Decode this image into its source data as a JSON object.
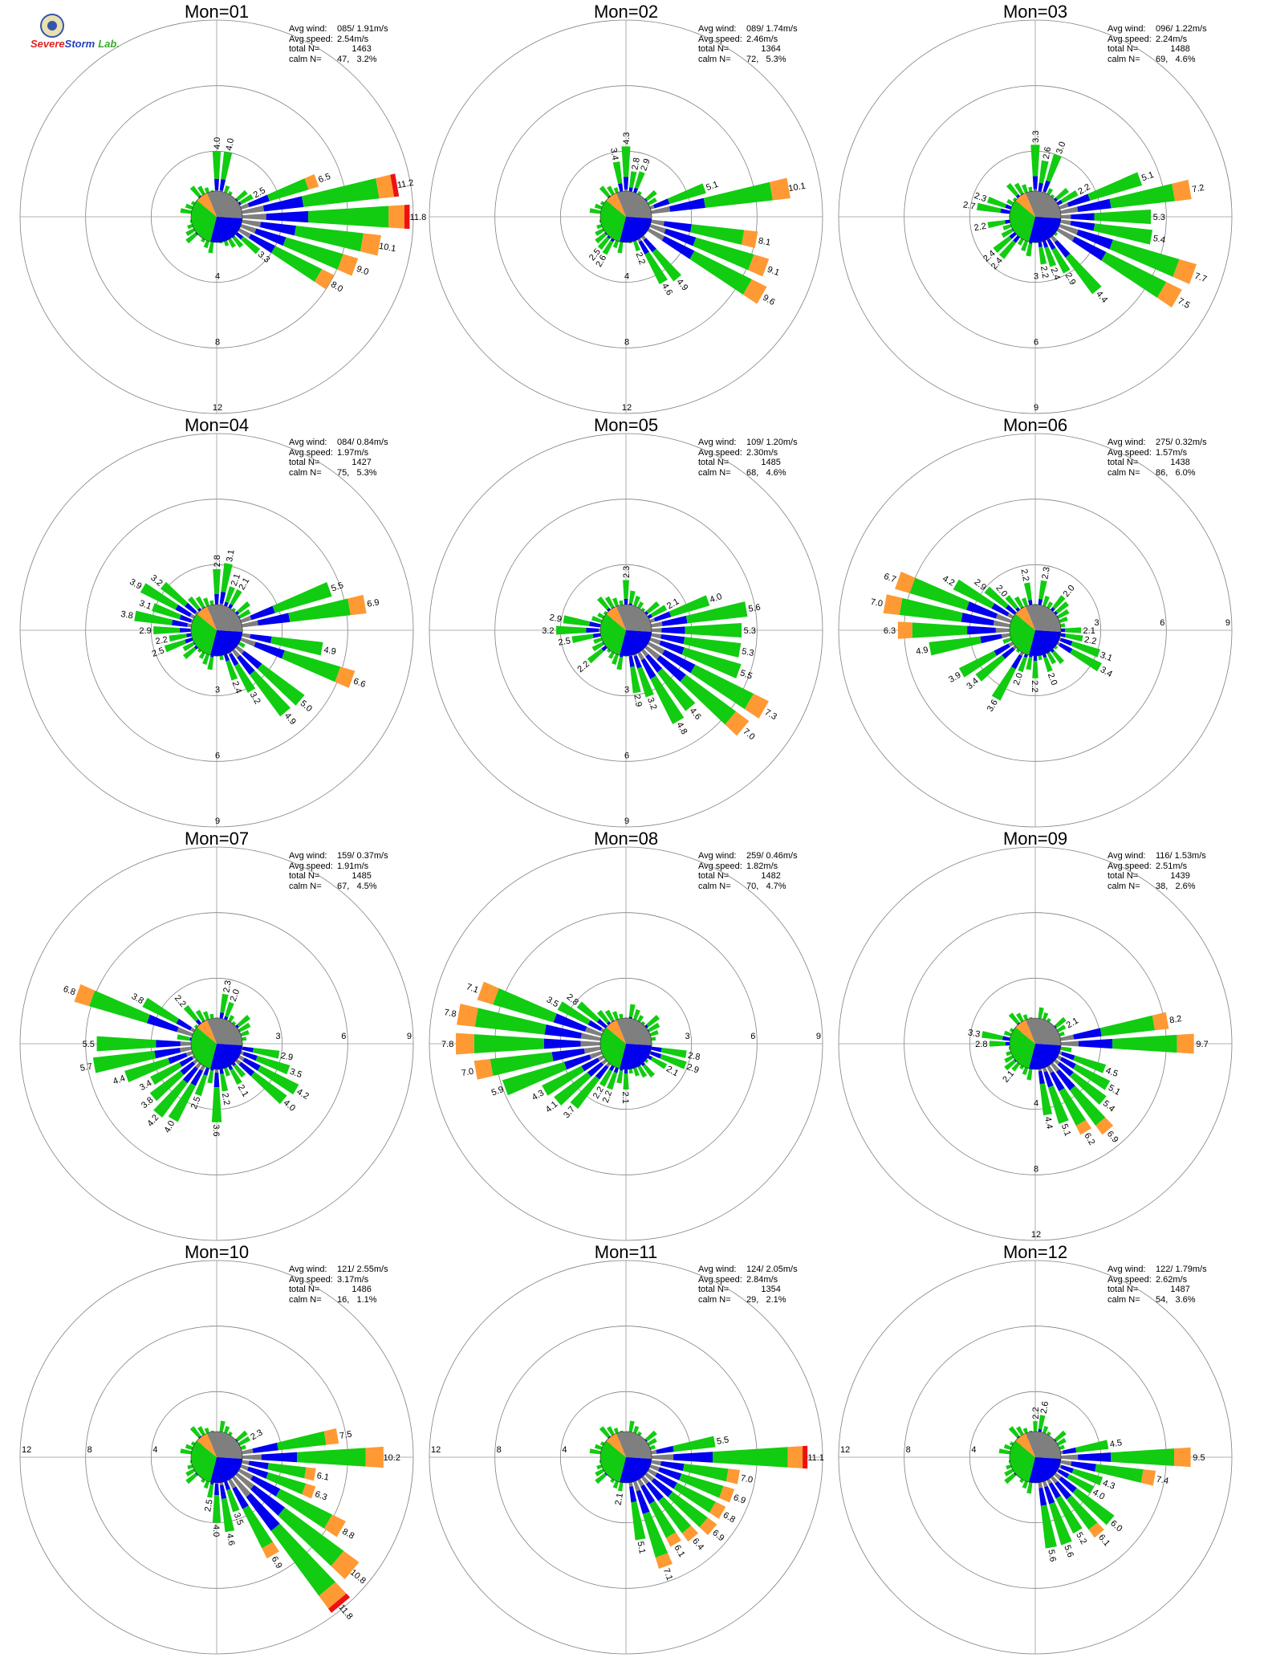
{
  "logo": {
    "name": "severe-storm-lab-logo",
    "text_severe": "Severe",
    "text_storm": "Storm",
    "text_lab": "Lab."
  },
  "labels": {
    "avg_wind": "Avg wind:",
    "avg_speed": "Avg speed:",
    "total": "total N=",
    "calm": "calm N="
  },
  "colors": {
    "calm_white": "#ffffff",
    "speed_1_gray": "#7f7f7f",
    "speed_2_blue": "#0000ee",
    "speed_3_green": "#11cc11",
    "speed_4_orange": "#ff9933",
    "speed_5_red": "#ee1111"
  },
  "chart_data": [
    {
      "type": "wind-rose",
      "title": "Mon=01",
      "avg_wind": "085/ 1.91m/s",
      "avg_speed": "2.54m/s",
      "total_n": "1463",
      "calm_n": "47,   3.2%",
      "rmax": 12,
      "rings": [
        4,
        8,
        12
      ],
      "ring_label_side": "bottom",
      "petals": [
        {
          "dir": 90,
          "value": 11.8
        },
        {
          "dir": 80,
          "value": 11.2
        },
        {
          "dir": 100,
          "value": 10.1
        },
        {
          "dir": 110,
          "value": 9.0
        },
        {
          "dir": 120,
          "value": 8.0
        },
        {
          "dir": 70,
          "value": 6.5
        },
        {
          "dir": 130,
          "value": 3.3
        },
        {
          "dir": 60,
          "value": 2.5
        },
        {
          "dir": 10,
          "value": 4.0
        },
        {
          "dir": 0,
          "value": 4.0
        }
      ]
    },
    {
      "type": "wind-rose",
      "title": "Mon=02",
      "avg_wind": "089/ 1.74m/s",
      "avg_speed": "2.46m/s",
      "total_n": "1364",
      "calm_n": "72,   5.3%",
      "rmax": 12,
      "rings": [
        4,
        8,
        12
      ],
      "ring_label_side": "bottom",
      "petals": [
        {
          "dir": 80,
          "value": 10.1
        },
        {
          "dir": 120,
          "value": 9.6
        },
        {
          "dir": 110,
          "value": 9.1
        },
        {
          "dir": 100,
          "value": 8.1
        },
        {
          "dir": 70,
          "value": 5.1
        },
        {
          "dir": 140,
          "value": 4.9
        },
        {
          "dir": 150,
          "value": 4.6
        },
        {
          "dir": 0,
          "value": 4.3
        },
        {
          "dir": 350,
          "value": 3.4
        },
        {
          "dir": 10,
          "value": 2.8
        },
        {
          "dir": 20,
          "value": 2.9
        },
        {
          "dir": 160,
          "value": 2.2
        },
        {
          "dir": 210,
          "value": 2.6
        },
        {
          "dir": 220,
          "value": 2.5
        }
      ]
    },
    {
      "type": "wind-rose",
      "title": "Mon=03",
      "avg_wind": "096/ 1.22m/s",
      "avg_speed": "2.24m/s",
      "total_n": "1488",
      "calm_n": "69,   4.6%",
      "rmax": 9,
      "rings": [
        3,
        6,
        9
      ],
      "ring_label_side": "bottom",
      "petals": [
        {
          "dir": 120,
          "value": 7.5
        },
        {
          "dir": 110,
          "value": 7.7
        },
        {
          "dir": 80,
          "value": 7.2
        },
        {
          "dir": 70,
          "value": 5.1
        },
        {
          "dir": 100,
          "value": 5.4
        },
        {
          "dir": 90,
          "value": 5.3
        },
        {
          "dir": 140,
          "value": 4.4
        },
        {
          "dir": 0,
          "value": 3.3
        },
        {
          "dir": 10,
          "value": 2.6
        },
        {
          "dir": 20,
          "value": 3.0
        },
        {
          "dir": 60,
          "value": 2.2
        },
        {
          "dir": 150,
          "value": 2.9
        },
        {
          "dir": 160,
          "value": 2.4
        },
        {
          "dir": 170,
          "value": 2.2
        },
        {
          "dir": 280,
          "value": 2.7
        },
        {
          "dir": 290,
          "value": 2.3
        },
        {
          "dir": 260,
          "value": 2.2
        },
        {
          "dir": 230,
          "value": 2.4
        },
        {
          "dir": 220,
          "value": 2.4
        }
      ]
    },
    {
      "type": "wind-rose",
      "title": "Mon=04",
      "avg_wind": "084/ 0.84m/s",
      "avg_speed": "1.97m/s",
      "total_n": "1427",
      "calm_n": "75,   5.3%",
      "rmax": 9,
      "rings": [
        3,
        6,
        9
      ],
      "ring_label_side": "bottom",
      "petals": [
        {
          "dir": 80,
          "value": 6.9
        },
        {
          "dir": 110,
          "value": 6.6
        },
        {
          "dir": 70,
          "value": 5.5
        },
        {
          "dir": 130,
          "value": 5.0
        },
        {
          "dir": 140,
          "value": 4.9
        },
        {
          "dir": 100,
          "value": 4.9
        },
        {
          "dir": 300,
          "value": 3.9
        },
        {
          "dir": 280,
          "value": 3.8
        },
        {
          "dir": 310,
          "value": 3.2
        },
        {
          "dir": 150,
          "value": 3.2
        },
        {
          "dir": 290,
          "value": 3.1
        },
        {
          "dir": 10,
          "value": 3.1
        },
        {
          "dir": 0,
          "value": 2.8
        },
        {
          "dir": 270,
          "value": 2.9
        },
        {
          "dir": 160,
          "value": 2.4
        },
        {
          "dir": 250,
          "value": 2.5
        },
        {
          "dir": 260,
          "value": 2.2
        },
        {
          "dir": 20,
          "value": 2.1
        },
        {
          "dir": 30,
          "value": 2.1
        }
      ]
    },
    {
      "type": "wind-rose",
      "title": "Mon=05",
      "avg_wind": "109/ 1.20m/s",
      "avg_speed": "2.30m/s",
      "total_n": "1485",
      "calm_n": "68,   4.6%",
      "rmax": 9,
      "rings": [
        3,
        6,
        9
      ],
      "ring_label_side": "bottom",
      "petals": [
        {
          "dir": 120,
          "value": 7.3
        },
        {
          "dir": 130,
          "value": 7.0
        },
        {
          "dir": 80,
          "value": 5.6
        },
        {
          "dir": 110,
          "value": 5.5
        },
        {
          "dir": 90,
          "value": 5.3
        },
        {
          "dir": 100,
          "value": 5.3
        },
        {
          "dir": 150,
          "value": 4.8
        },
        {
          "dir": 140,
          "value": 4.6
        },
        {
          "dir": 70,
          "value": 4.0
        },
        {
          "dir": 160,
          "value": 3.2
        },
        {
          "dir": 270,
          "value": 3.2
        },
        {
          "dir": 280,
          "value": 2.9
        },
        {
          "dir": 170,
          "value": 2.9
        },
        {
          "dir": 0,
          "value": 2.3
        },
        {
          "dir": 230,
          "value": 2.2
        },
        {
          "dir": 260,
          "value": 2.5
        },
        {
          "dir": 60,
          "value": 2.1
        }
      ]
    },
    {
      "type": "wind-rose",
      "title": "Mon=06",
      "avg_wind": "275/ 0.32m/s",
      "avg_speed": "1.57m/s",
      "total_n": "1438",
      "calm_n": "86,   6.0%",
      "rmax": 9,
      "rings": [
        3,
        6,
        9
      ],
      "ring_label_side": "right",
      "petals": [
        {
          "dir": 280,
          "value": 7.0
        },
        {
          "dir": 290,
          "value": 6.7
        },
        {
          "dir": 270,
          "value": 6.3
        },
        {
          "dir": 260,
          "value": 4.9
        },
        {
          "dir": 300,
          "value": 4.2
        },
        {
          "dir": 240,
          "value": 3.9
        },
        {
          "dir": 210,
          "value": 3.6
        },
        {
          "dir": 230,
          "value": 3.4
        },
        {
          "dir": 120,
          "value": 3.4
        },
        {
          "dir": 110,
          "value": 3.1
        },
        {
          "dir": 310,
          "value": 2.9
        },
        {
          "dir": 10,
          "value": 2.3
        },
        {
          "dir": 350,
          "value": 2.2
        },
        {
          "dir": 40,
          "value": 2.0
        },
        {
          "dir": 320,
          "value": 2.0
        },
        {
          "dir": 180,
          "value": 2.2
        },
        {
          "dir": 200,
          "value": 2.0
        },
        {
          "dir": 160,
          "value": 2.0
        },
        {
          "dir": 100,
          "value": 2.2
        },
        {
          "dir": 90,
          "value": 2.1
        }
      ]
    },
    {
      "type": "wind-rose",
      "title": "Mon=07",
      "avg_wind": "159/ 0.37m/s",
      "avg_speed": "1.91m/s",
      "total_n": "1485",
      "calm_n": "67,   4.5%",
      "rmax": 9,
      "rings": [
        3,
        6,
        9
      ],
      "ring_label_side": "right",
      "petals": [
        {
          "dir": 290,
          "value": 6.8
        },
        {
          "dir": 260,
          "value": 5.7
        },
        {
          "dir": 270,
          "value": 5.5
        },
        {
          "dir": 120,
          "value": 4.2
        },
        {
          "dir": 130,
          "value": 4.0
        },
        {
          "dir": 220,
          "value": 4.2
        },
        {
          "dir": 210,
          "value": 4.0
        },
        {
          "dir": 250,
          "value": 4.4
        },
        {
          "dir": 300,
          "value": 3.8
        },
        {
          "dir": 180,
          "value": 3.6
        },
        {
          "dir": 110,
          "value": 3.5
        },
        {
          "dir": 240,
          "value": 3.4
        },
        {
          "dir": 230,
          "value": 3.8
        },
        {
          "dir": 100,
          "value": 2.9
        },
        {
          "dir": 200,
          "value": 2.5
        },
        {
          "dir": 320,
          "value": 2.2
        },
        {
          "dir": 170,
          "value": 2.2
        },
        {
          "dir": 10,
          "value": 2.3
        },
        {
          "dir": 20,
          "value": 2.0
        },
        {
          "dir": 150,
          "value": 2.1
        }
      ]
    },
    {
      "type": "wind-rose",
      "title": "Mon=08",
      "avg_wind": "259/ 0.46m/s",
      "avg_speed": "1.82m/s",
      "total_n": "1482",
      "calm_n": "70,   4.7%",
      "rmax": 9,
      "rings": [
        3,
        6,
        9
      ],
      "ring_label_side": "right",
      "petals": [
        {
          "dir": 270,
          "value": 7.8
        },
        {
          "dir": 280,
          "value": 7.8
        },
        {
          "dir": 290,
          "value": 7.1
        },
        {
          "dir": 260,
          "value": 7.0
        },
        {
          "dir": 250,
          "value": 5.9
        },
        {
          "dir": 240,
          "value": 4.3
        },
        {
          "dir": 230,
          "value": 4.1
        },
        {
          "dir": 300,
          "value": 3.5
        },
        {
          "dir": 310,
          "value": 2.8
        },
        {
          "dir": 220,
          "value": 3.7
        },
        {
          "dir": 210,
          "value": 2.2
        },
        {
          "dir": 200,
          "value": 2.2
        },
        {
          "dir": 180,
          "value": 2.1
        },
        {
          "dir": 100,
          "value": 2.8
        },
        {
          "dir": 110,
          "value": 2.9
        },
        {
          "dir": 120,
          "value": 2.1
        }
      ]
    },
    {
      "type": "wind-rose",
      "title": "Mon=09",
      "avg_wind": "116/ 1.53m/s",
      "avg_speed": "2.51m/s",
      "total_n": "1439",
      "calm_n": "38,   2.6%",
      "rmax": 12,
      "rings": [
        4,
        8,
        12
      ],
      "ring_label_side": "bottom",
      "petals": [
        {
          "dir": 90,
          "value": 9.7
        },
        {
          "dir": 80,
          "value": 8.2
        },
        {
          "dir": 150,
          "value": 6.2
        },
        {
          "dir": 140,
          "value": 6.9
        },
        {
          "dir": 130,
          "value": 5.4
        },
        {
          "dir": 120,
          "value": 5.1
        },
        {
          "dir": 110,
          "value": 4.5
        },
        {
          "dir": 160,
          "value": 5.1
        },
        {
          "dir": 170,
          "value": 4.4
        },
        {
          "dir": 280,
          "value": 3.3
        },
        {
          "dir": 270,
          "value": 2.8
        },
        {
          "dir": 60,
          "value": 2.1
        },
        {
          "dir": 220,
          "value": 2.1
        }
      ]
    },
    {
      "type": "wind-rose",
      "title": "Mon=10",
      "avg_wind": "121/ 2.55m/s",
      "avg_speed": "3.17m/s",
      "total_n": "1486",
      "calm_n": "16,   1.1%",
      "rmax": 12,
      "rings": [
        4,
        8,
        12
      ],
      "ring_label_side": "left",
      "petals": [
        {
          "dir": 140,
          "value": 11.8
        },
        {
          "dir": 130,
          "value": 10.8
        },
        {
          "dir": 90,
          "value": 10.2
        },
        {
          "dir": 120,
          "value": 8.8
        },
        {
          "dir": 80,
          "value": 7.5
        },
        {
          "dir": 150,
          "value": 6.9
        },
        {
          "dir": 110,
          "value": 6.3
        },
        {
          "dir": 100,
          "value": 6.1
        },
        {
          "dir": 170,
          "value": 4.6
        },
        {
          "dir": 180,
          "value": 4.0
        },
        {
          "dir": 160,
          "value": 3.5
        },
        {
          "dir": 190,
          "value": 2.5
        },
        {
          "dir": 60,
          "value": 2.3
        }
      ]
    },
    {
      "type": "wind-rose",
      "title": "Mon=11",
      "avg_wind": "124/ 2.05m/s",
      "avg_speed": "2.84m/s",
      "total_n": "1354",
      "calm_n": "29,   2.1%",
      "rmax": 12,
      "rings": [
        4,
        8,
        12
      ],
      "ring_label_side": "left",
      "petals": [
        {
          "dir": 90,
          "value": 11.1
        },
        {
          "dir": 160,
          "value": 7.1
        },
        {
          "dir": 100,
          "value": 7.0
        },
        {
          "dir": 110,
          "value": 6.9
        },
        {
          "dir": 120,
          "value": 6.8
        },
        {
          "dir": 130,
          "value": 6.9
        },
        {
          "dir": 140,
          "value": 6.4
        },
        {
          "dir": 150,
          "value": 6.1
        },
        {
          "dir": 80,
          "value": 5.5
        },
        {
          "dir": 170,
          "value": 5.1
        },
        {
          "dir": 190,
          "value": 2.1
        }
      ]
    },
    {
      "type": "wind-rose",
      "title": "Mon=12",
      "avg_wind": "122/ 1.79m/s",
      "avg_speed": "2.62m/s",
      "total_n": "1487",
      "calm_n": "54,   3.6%",
      "rmax": 12,
      "rings": [
        4,
        8,
        12
      ],
      "ring_label_side": "left",
      "petals": [
        {
          "dir": 90,
          "value": 9.5
        },
        {
          "dir": 100,
          "value": 7.4
        },
        {
          "dir": 130,
          "value": 6.0
        },
        {
          "dir": 140,
          "value": 6.1
        },
        {
          "dir": 150,
          "value": 5.2
        },
        {
          "dir": 160,
          "value": 5.6
        },
        {
          "dir": 170,
          "value": 5.6
        },
        {
          "dir": 110,
          "value": 4.3
        },
        {
          "dir": 120,
          "value": 4.0
        },
        {
          "dir": 80,
          "value": 4.5
        },
        {
          "dir": 10,
          "value": 2.6
        },
        {
          "dir": 0,
          "value": 2.2
        }
      ]
    }
  ]
}
